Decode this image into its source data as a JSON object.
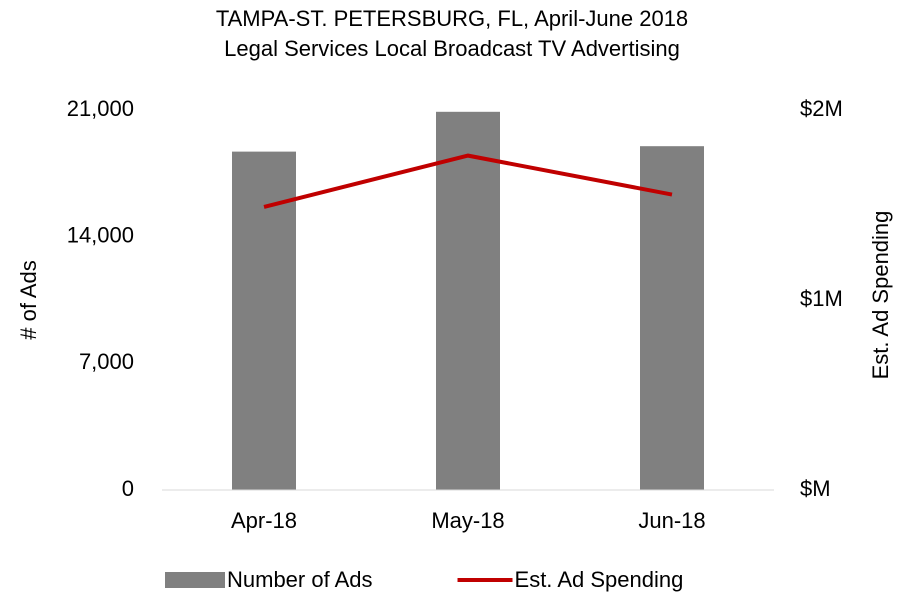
{
  "chart_data": {
    "type": "bar_line",
    "title": "TAMPA-ST. PETERSBURG, FL, April-June 2018",
    "subtitle": "Legal Services Local Broadcast TV Advertising",
    "y_label": "# of Ads",
    "y2_label": "Est. Ad Spending",
    "categories": [
      "Apr-18",
      "May-18",
      "Jun-18"
    ],
    "series": [
      {
        "name": "Number of Ads",
        "type": "bar",
        "color": "#808080",
        "values": [
          18700,
          20900,
          19000
        ]
      },
      {
        "name": "Est. Ad Spending",
        "type": "line",
        "color": "#c00000",
        "axis": "y2",
        "values": [
          1490000,
          1760000,
          1555000
        ]
      }
    ],
    "ylim": [
      0,
      21000
    ],
    "yticks": [
      0,
      {
        "value": 7000,
        "label": "7,000"
      },
      {
        "value": 14000,
        "label": "14,000"
      },
      {
        "value": 21000,
        "label": "21,000"
      }
    ],
    "y2lim": [
      0,
      2000000
    ],
    "y2ticks": [
      {
        "value": 0,
        "label": "$M"
      },
      {
        "value": 1000000,
        "label": "$1M"
      },
      {
        "value": 2000000,
        "label": "$2M"
      }
    ],
    "grid": false,
    "legend": "bottom"
  }
}
